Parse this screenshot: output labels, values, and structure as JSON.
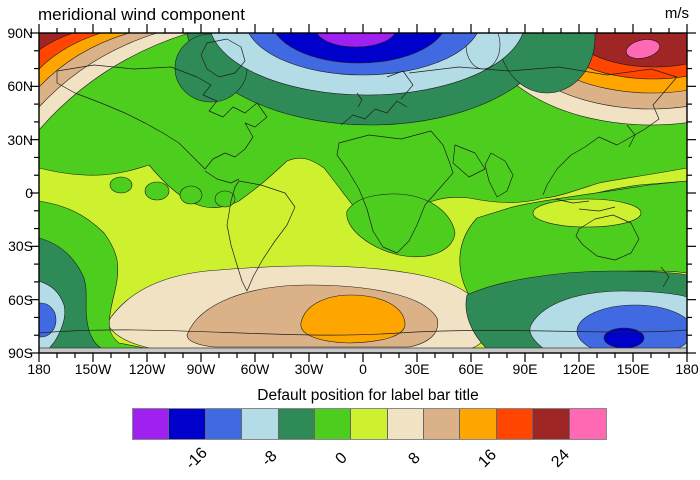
{
  "title": "meridional wind component",
  "units": "m/s",
  "axes": {
    "y_labels": [
      "90N",
      "60N",
      "30N",
      "0",
      "30S",
      "60S",
      "90S"
    ],
    "x_labels": [
      "180",
      "150W",
      "120W",
      "90W",
      "60W",
      "30W",
      "0",
      "30E",
      "60E",
      "90E",
      "120E",
      "150E",
      "180"
    ]
  },
  "labelbar": {
    "title": "Default position for label bar title",
    "tick_labels": [
      "-16",
      "-8",
      "0",
      "8",
      "16",
      "24"
    ],
    "tick_boundary_indices": [
      2,
      4,
      6,
      8,
      10,
      12
    ],
    "colors": [
      "#A020F0",
      "#0000CD",
      "#4169E1",
      "#B4DCE6",
      "#2E8B57",
      "#4DCE1F",
      "#CDF02F",
      "#F0E2C2",
      "#DBB287",
      "#FFA500",
      "#FF4500",
      "#A02525",
      "#FF69B4"
    ],
    "antarctic_strip_color": "#C8C8C8"
  },
  "chart_data": {
    "type": "heatmap",
    "subtype": "filled_contour_world_map",
    "title": "meridional wind component",
    "units": "m/s",
    "projection": "cylindrical equidistant",
    "lon_range": [
      -180,
      180
    ],
    "lat_range": [
      -90,
      90
    ],
    "x_tick_lons": [
      -180,
      -150,
      -120,
      -90,
      -60,
      -30,
      0,
      30,
      60,
      90,
      120,
      150,
      180
    ],
    "y_tick_lats": [
      90,
      60,
      30,
      0,
      -30,
      -60,
      -90
    ],
    "minor_tick_interval_deg": 10,
    "contour_levels": [
      -20,
      -16,
      -12,
      -8,
      -4,
      0,
      4,
      8,
      12,
      16,
      20,
      24
    ],
    "labeled_levels": [
      -16,
      -8,
      0,
      8,
      16,
      24
    ],
    "palette": [
      "#A020F0",
      "#0000CD",
      "#4169E1",
      "#B4DCE6",
      "#2E8B57",
      "#4DCE1F",
      "#CDF02F",
      "#F0E2C2",
      "#DBB287",
      "#FFA500",
      "#FF4500",
      "#A02525",
      "#FF69B4"
    ],
    "labelbar_title": "Default position for label bar title",
    "features": [
      {
        "name": "north-polar-minimum",
        "lon": 0,
        "lat": 85,
        "value": "< -20 (purple core, blue rings)"
      },
      {
        "name": "northeast-siberia-maximum",
        "lon": 150,
        "lat": 80,
        "value": "> 24 (pink core, red/orange rings), wraps across 180 to top-left corner"
      },
      {
        "name": "south-atlantic-maximum",
        "lon": 10,
        "lat": -63,
        "value": "8 to 12 (orange core, tan/beige rings)"
      },
      {
        "name": "south-pacific-minimum",
        "lon": 155,
        "lat": -68,
        "value": "-16 to -20 (dark blue core), wraps across 180 to bottom-left edge"
      },
      {
        "name": "midlatitude-background",
        "value": "-4 to 0 (yellow-green) with 0 to 4 (green) bands over both hemispheres"
      }
    ]
  }
}
